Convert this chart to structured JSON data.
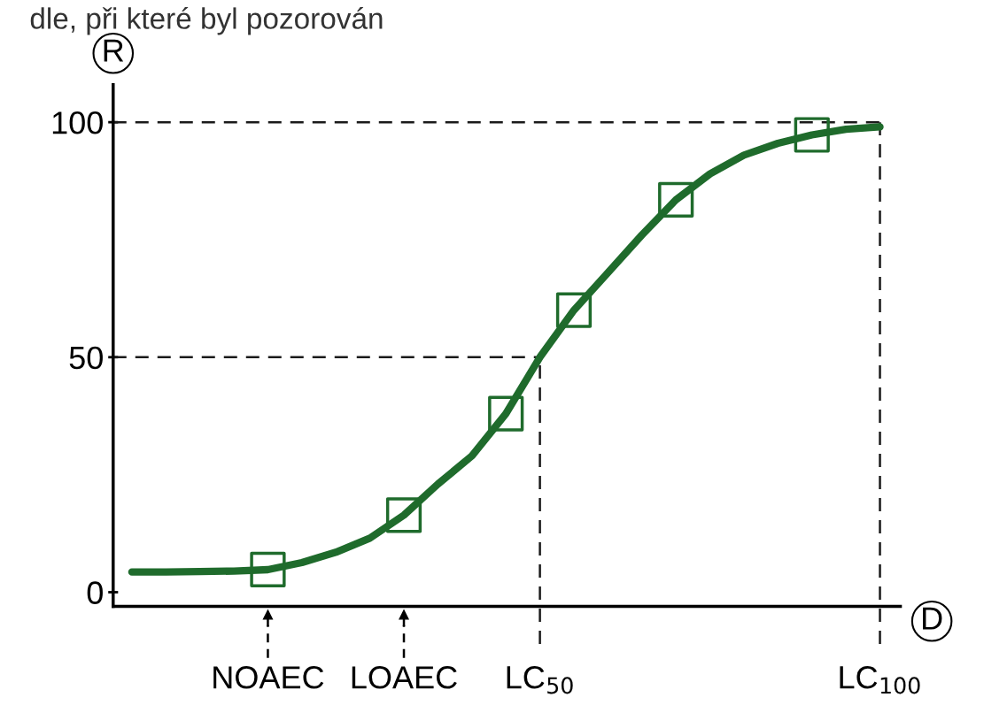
{
  "chart_data": {
    "type": "line",
    "xlabel": "D",
    "ylabel": "R",
    "annotations": [
      "dle, při které byl pozorován"
    ],
    "categories": [
      null,
      null,
      null,
      null,
      "NOAEC",
      null,
      null,
      null,
      "LOAEC",
      null,
      null,
      null,
      "LC$_{50}$",
      null,
      null,
      null,
      null,
      null,
      null,
      null,
      null,
      null,
      "LC$_{100}$"
    ],
    "ylim": [
      -3,
      108
    ],
    "yticks": [
      0,
      50,
      100
    ],
    "grid": false,
    "legend": false,
    "series": [
      {
        "color": "#1f6b2c",
        "marker": "none",
        "line_style": "solid",
        "values": [
          4.3,
          4.3,
          4.4,
          4.5,
          4.8,
          6.3,
          8.5,
          11.5,
          16.4,
          23,
          29,
          38,
          50,
          60,
          68,
          76,
          83.5,
          89,
          93,
          95.5,
          97.3,
          98.5,
          99
        ]
      },
      {
        "type": "scatter",
        "color": "#1f6b2c",
        "marker": "square",
        "values": [
          null,
          null,
          null,
          null,
          4.8,
          null,
          null,
          null,
          16.4,
          null,
          null,
          38,
          null,
          60,
          null,
          null,
          83.5,
          null,
          null,
          null,
          97.3,
          null,
          null
        ]
      }
    ],
    "ref_lines": [
      {
        "axis": "y",
        "value": 100,
        "line_style": "dashed",
        "color": "#1a1a1a"
      },
      {
        "axis": "y",
        "value": 50,
        "line_style": "dashed",
        "color": "#1a1a1a"
      },
      {
        "axis": "x",
        "value": "LC$_{50}$",
        "line_style": "dashed",
        "color": "#1a1a1a"
      },
      {
        "axis": "x",
        "value": "LC$_{100}$",
        "line_style": "dashed",
        "color": "#1a1a1a"
      }
    ]
  }
}
